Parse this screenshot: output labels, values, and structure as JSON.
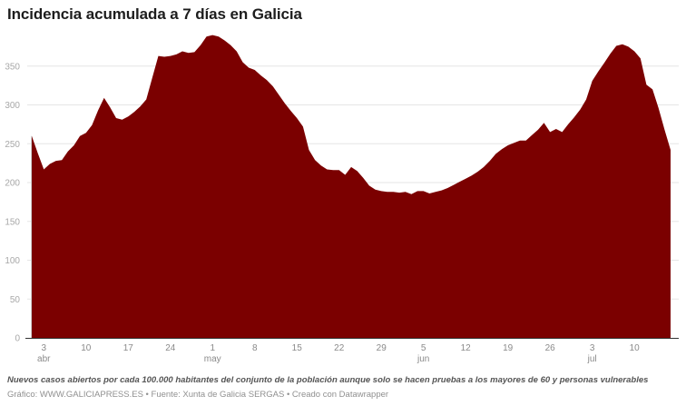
{
  "title": "Incidencia acumulada a 7 días en Galicia",
  "note": "Nuevos casos abiertos por cada 100.000 habitantes del conjunto de la población aunque solo se hacen pruebas a los mayores de 60 y personas vulnerables",
  "source": "Gráfico: WWW.GALICIAPRESS.ES • Fuente: Xunta de Galicia SERGAS • Creado con Datawrapper",
  "colors": {
    "area": "#7b0000",
    "grid": "#e6e6e6",
    "axis": "#333333",
    "tick_text": "#a8a8a8"
  },
  "chart_data": {
    "type": "area",
    "title": "Incidencia acumulada a 7 días en Galicia",
    "xlabel": "",
    "ylabel": "",
    "ylim": [
      0,
      390
    ],
    "yticks": [
      0,
      50,
      100,
      150,
      200,
      250,
      300,
      350
    ],
    "grid": true,
    "legend": "none",
    "x_start": "1 abr",
    "x_end": "13 jul",
    "xticks": [
      {
        "day": 2,
        "label": "3",
        "month": "abr"
      },
      {
        "day": 9,
        "label": "10",
        "month": ""
      },
      {
        "day": 16,
        "label": "17",
        "month": ""
      },
      {
        "day": 23,
        "label": "24",
        "month": ""
      },
      {
        "day": 30,
        "label": "1",
        "month": "may"
      },
      {
        "day": 37,
        "label": "8",
        "month": ""
      },
      {
        "day": 44,
        "label": "15",
        "month": ""
      },
      {
        "day": 51,
        "label": "22",
        "month": ""
      },
      {
        "day": 58,
        "label": "29",
        "month": ""
      },
      {
        "day": 65,
        "label": "5",
        "month": "jun"
      },
      {
        "day": 72,
        "label": "12",
        "month": ""
      },
      {
        "day": 79,
        "label": "19",
        "month": ""
      },
      {
        "day": 86,
        "label": "26",
        "month": ""
      },
      {
        "day": 93,
        "label": "3",
        "month": "jul"
      },
      {
        "day": 100,
        "label": "10",
        "month": ""
      }
    ],
    "values": [
      260,
      238,
      217,
      224,
      228,
      229,
      240,
      248,
      260,
      264,
      274,
      293,
      309,
      297,
      283,
      281,
      285,
      291,
      298,
      307,
      335,
      363,
      362,
      363,
      365,
      369,
      367,
      368,
      377,
      388,
      390,
      388,
      383,
      377,
      369,
      355,
      348,
      345,
      338,
      332,
      324,
      313,
      302,
      292,
      283,
      272,
      242,
      229,
      222,
      217,
      216,
      216,
      210,
      220,
      215,
      206,
      196,
      191,
      189,
      188,
      188,
      187,
      188,
      185,
      189,
      189,
      186,
      188,
      190,
      193,
      197,
      201,
      205,
      209,
      214,
      220,
      228,
      237,
      243,
      248,
      251,
      254,
      254,
      261,
      268,
      277,
      265,
      269,
      265,
      275,
      284,
      294,
      307,
      331,
      343,
      354,
      366,
      376,
      378,
      375,
      369,
      360,
      326,
      320,
      296,
      268,
      242
    ]
  }
}
